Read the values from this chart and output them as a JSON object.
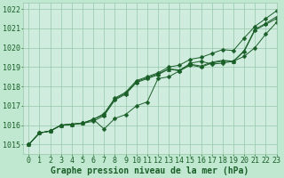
{
  "title": "Graphe pression niveau de la mer (hPa)",
  "background_color": "#c0e8d0",
  "plot_bg_color": "#d0ecdf",
  "grid_color": "#96c8aa",
  "line_color": "#1a5e28",
  "xlim": [
    -0.5,
    23
  ],
  "ylim": [
    1014.5,
    1022.3
  ],
  "yticks": [
    1015,
    1016,
    1017,
    1018,
    1019,
    1020,
    1021,
    1022
  ],
  "xticks": [
    0,
    1,
    2,
    3,
    4,
    5,
    6,
    7,
    8,
    9,
    10,
    11,
    12,
    13,
    14,
    15,
    16,
    17,
    18,
    19,
    20,
    21,
    22,
    23
  ],
  "series": [
    [
      1015.0,
      1015.6,
      1015.7,
      1016.0,
      1016.05,
      1016.1,
      1016.3,
      1016.6,
      1017.4,
      1017.7,
      1018.3,
      1018.5,
      1018.7,
      1019.0,
      1019.1,
      1019.4,
      1019.5,
      1019.7,
      1019.9,
      1019.85,
      1020.5,
      1021.1,
      1021.5,
      1021.9
    ],
    [
      1015.0,
      1015.6,
      1015.7,
      1016.0,
      1016.05,
      1016.1,
      1016.3,
      1015.8,
      1016.35,
      1016.55,
      1017.0,
      1017.2,
      1018.4,
      1018.5,
      1018.8,
      1019.2,
      1019.3,
      1019.15,
      1019.2,
      1019.3,
      1019.55,
      1020.0,
      1020.7,
      1021.3
    ],
    [
      1015.0,
      1015.6,
      1015.7,
      1016.0,
      1016.05,
      1016.1,
      1016.3,
      1016.55,
      1017.35,
      1017.65,
      1018.25,
      1018.45,
      1018.65,
      1018.9,
      1018.85,
      1019.15,
      1019.05,
      1019.25,
      1019.35,
      1019.3,
      1019.85,
      1020.95,
      1021.25,
      1021.6
    ],
    [
      1015.0,
      1015.6,
      1015.7,
      1016.0,
      1016.05,
      1016.1,
      1016.2,
      1016.5,
      1017.3,
      1017.6,
      1018.2,
      1018.4,
      1018.6,
      1018.9,
      1018.8,
      1019.1,
      1019.0,
      1019.2,
      1019.3,
      1019.3,
      1019.8,
      1020.9,
      1021.2,
      1021.5
    ]
  ],
  "markers": [
    "D",
    "D",
    "^",
    "D"
  ],
  "marker_sizes": [
    2.5,
    2.5,
    3,
    2.5
  ],
  "tick_fontsize": 6,
  "xlabel_fontsize": 7,
  "tick_color": "#1a5e28",
  "xlabel_color": "#1a5e28"
}
